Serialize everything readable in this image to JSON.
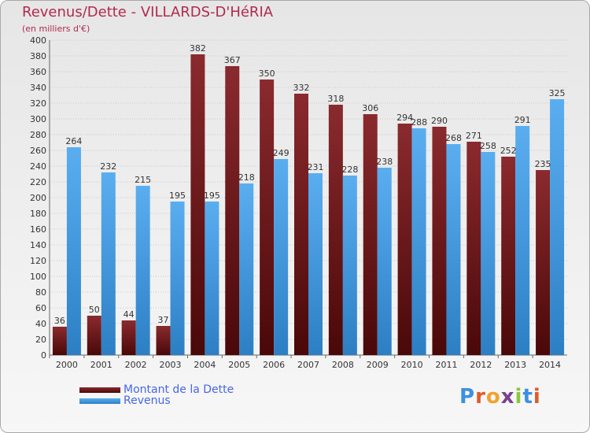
{
  "title": "Revenus/Dette - VILLARDS-D'HéRIA",
  "subtitle": "(en milliers d'€)",
  "legend": {
    "debt_label": "Montant de la Dette",
    "revenue_label": "Revenus"
  },
  "logo": {
    "text": "Proxiti",
    "letters": [
      "P",
      "r",
      "o",
      "x",
      "i",
      "t",
      "i"
    ],
    "colors": [
      "#3d8fe0",
      "#e05a2a",
      "#f2a12f",
      "#7a3f8f",
      "#8cc63e",
      "#3d8fe0",
      "#e05a2a"
    ]
  },
  "colors": {
    "debt": "#7f1f24",
    "revenue": "#4a9de0",
    "title": "#b02a4f",
    "legend_text": "#4766e8"
  },
  "chart_data": {
    "type": "bar",
    "title": "Revenus/Dette - VILLARDS-D'HéRIA",
    "subtitle": "(en milliers d'€)",
    "categories": [
      "2000",
      "2001",
      "2002",
      "2003",
      "2004",
      "2005",
      "2006",
      "2007",
      "2008",
      "2009",
      "2010",
      "2011",
      "2012",
      "2013",
      "2014"
    ],
    "series": [
      {
        "name": "Montant de la Dette",
        "values": [
          36,
          50,
          44,
          37,
          382,
          367,
          350,
          332,
          318,
          306,
          294,
          290,
          271,
          252,
          235
        ]
      },
      {
        "name": "Revenus",
        "values": [
          264,
          232,
          215,
          195,
          195,
          218,
          249,
          231,
          228,
          238,
          288,
          268,
          258,
          291,
          325
        ]
      }
    ],
    "ylim": [
      0,
      400
    ],
    "ytick_step": 20,
    "grid": true,
    "legend_position": "bottom-left"
  }
}
